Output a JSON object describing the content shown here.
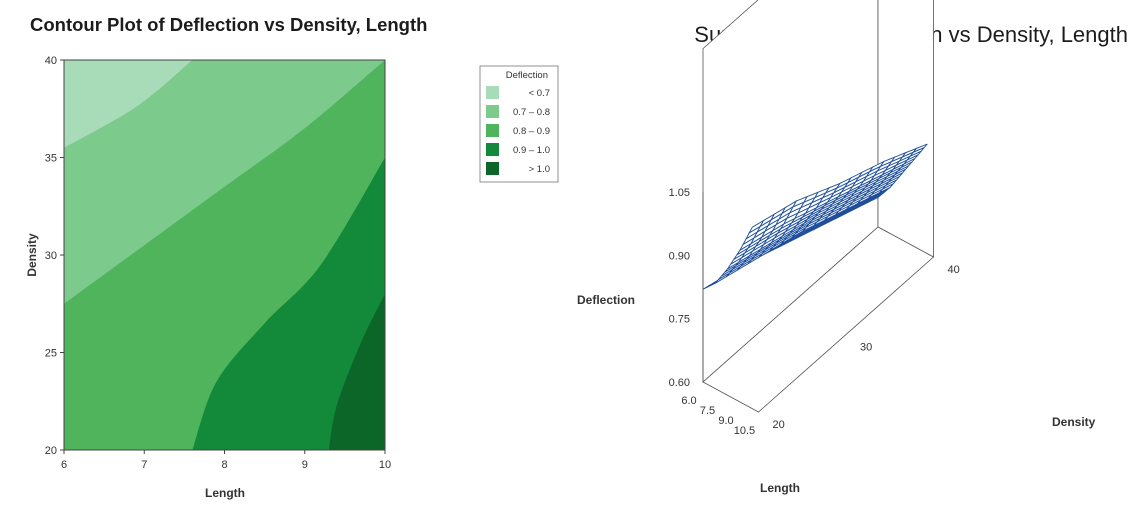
{
  "chart_data": [
    {
      "type": "heatmap",
      "title": "Contour Plot of Deflection vs Density, Length",
      "xlabel": "Length",
      "ylabel": "Density",
      "xlim": [
        6,
        10
      ],
      "ylim": [
        20,
        40
      ],
      "x_ticks": [
        "6",
        "7",
        "8",
        "9",
        "10"
      ],
      "y_ticks": [
        "20",
        "25",
        "30",
        "35",
        "40"
      ],
      "legend": {
        "title": "Deflection",
        "position": "right",
        "entries": [
          {
            "label": "< 0.7",
            "color": "#a8dcb8"
          },
          {
            "label": "0.7 – 0.8",
            "color": "#7cca8c"
          },
          {
            "label": "0.8 – 0.9",
            "color": "#4fb45c"
          },
          {
            "label": "0.9 – 1.0",
            "color": "#128a3a"
          },
          {
            "label": "> 1.0",
            "color": "#0b6628"
          }
        ]
      },
      "contours": [
        {
          "level": 0.7,
          "points": [
            [
              6,
              35.5
            ],
            [
              6.9,
              37.6
            ],
            [
              7.6,
              40
            ]
          ]
        },
        {
          "level": 0.8,
          "points": [
            [
              6,
              27.5
            ],
            [
              7,
              30.5
            ],
            [
              8,
              33.5
            ],
            [
              9,
              36.5
            ],
            [
              10,
              40
            ]
          ]
        },
        {
          "level": 0.9,
          "points": [
            [
              7.6,
              20
            ],
            [
              7.9,
              23.5
            ],
            [
              8.5,
              26.5
            ],
            [
              9.2,
              29.5
            ],
            [
              10,
              35
            ]
          ]
        },
        {
          "level": 1.0,
          "points": [
            [
              9.3,
              20
            ],
            [
              9.4,
              22.3
            ],
            [
              9.7,
              25.5
            ],
            [
              10,
              28
            ]
          ]
        }
      ]
    },
    {
      "type": "surface",
      "title": "Surface Plot of Deflection vs Density, Length",
      "xlabel": "Length",
      "ylabel": "Density",
      "zlabel": "Deflection",
      "x_ticks": [
        "6.0",
        "7.5",
        "9.0",
        "10.5"
      ],
      "y_ticks": [
        "20",
        "30",
        "40"
      ],
      "z_ticks": [
        "0.60",
        "0.75",
        "0.90",
        "1.05"
      ],
      "xlim": [
        6,
        10.5
      ],
      "ylim": [
        20,
        40
      ],
      "zlim": [
        0.6,
        1.05
      ],
      "surface_color": "#1f4f9c",
      "surface": {
        "x": [
          6,
          7,
          8,
          9,
          10
        ],
        "y": [
          20,
          25,
          30,
          35,
          40
        ],
        "z": [
          [
            0.82,
            0.85,
            0.9,
            0.96,
            1.03
          ],
          [
            0.79,
            0.82,
            0.87,
            0.93,
            1.0
          ],
          [
            0.75,
            0.79,
            0.84,
            0.89,
            0.95
          ],
          [
            0.71,
            0.75,
            0.8,
            0.85,
            0.91
          ],
          [
            0.67,
            0.71,
            0.76,
            0.81,
            0.86
          ]
        ]
      }
    }
  ],
  "colors": {
    "fill_base": "#5cbf68",
    "axis": "#333333",
    "mesh": "#1f4f9c"
  }
}
